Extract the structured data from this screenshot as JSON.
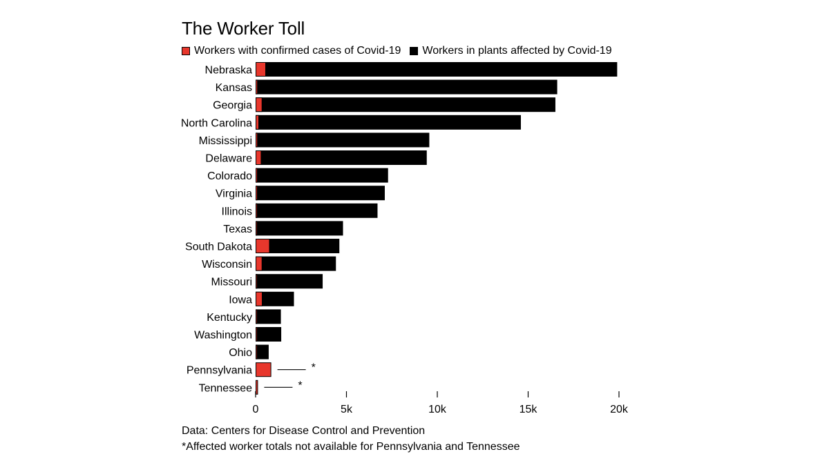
{
  "chart_data": {
    "type": "bar",
    "orientation": "horizontal",
    "stacked": "overlay",
    "title": "The Worker Toll",
    "categories": [
      "Nebraska",
      "Kansas",
      "Georgia",
      "North Carolina",
      "Mississippi",
      "Delaware",
      "Colorado",
      "Virginia",
      "Illinois",
      "Texas",
      "South Dakota",
      "Wisconsin",
      "Missouri",
      "Iowa",
      "Kentucky",
      "Washington",
      "Ohio",
      "Pennsylvania",
      "Tennessee"
    ],
    "series": [
      {
        "name": "Workers with confirmed cases of Covid-19",
        "color": "#e8372c",
        "values": [
          570,
          120,
          370,
          190,
          120,
          320,
          110,
          110,
          100,
          80,
          780,
          370,
          20,
          380,
          20,
          50,
          10,
          860,
          130
        ]
      },
      {
        "name": "Workers in plants affected by Covid-19",
        "color": "#000000",
        "values": [
          19900,
          16600,
          16500,
          14600,
          9560,
          9420,
          7290,
          7110,
          6710,
          4810,
          4610,
          4420,
          3690,
          2110,
          1390,
          1410,
          720,
          null,
          null
        ]
      }
    ],
    "marks": {
      "Pennsylvania": "*",
      "Tennessee": "*"
    },
    "xlim": [
      0,
      20000
    ],
    "x_ticks": [
      0,
      5000,
      10000,
      15000,
      20000
    ],
    "x_tick_labels": [
      "0",
      "5k",
      "10k",
      "15k",
      "20k"
    ],
    "legend": "top-left",
    "grid": false
  },
  "footer": {
    "source": "Data: Centers for Disease Control and Prevention",
    "note": "*Affected worker totals not available for Pennsylvania and Tennessee"
  }
}
